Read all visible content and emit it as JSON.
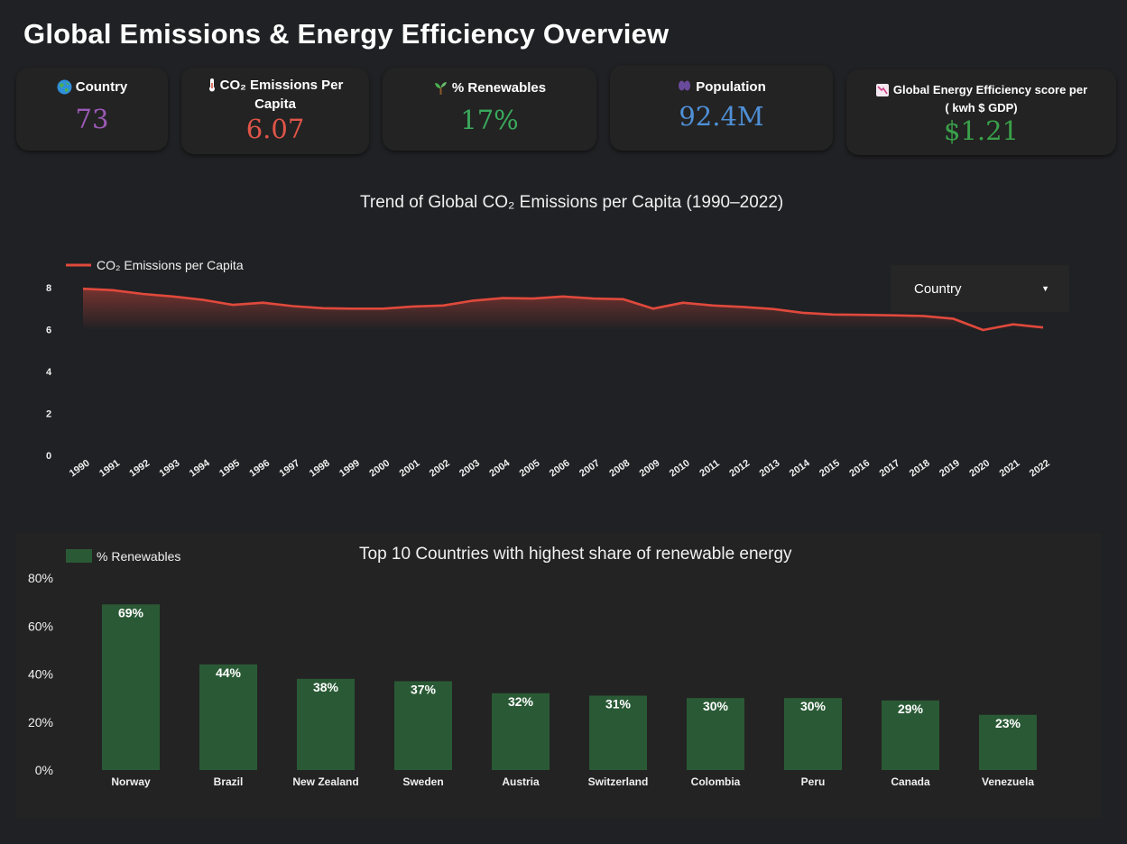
{
  "page": {
    "title": "Global Emissions & Energy Efficiency Overview"
  },
  "kpis": {
    "country": {
      "icon": "globe-icon",
      "label": "Country",
      "value": "73",
      "color": "#9b59b6"
    },
    "co2": {
      "icon": "thermometer-icon",
      "label_line1": "CO₂ Emissions Per",
      "label_line2": "Capita",
      "value": "6.07",
      "color": "#e05548"
    },
    "renewables": {
      "icon": "seedling-icon",
      "label": "% Renewables",
      "value": "17%",
      "color": "#3aaa5c"
    },
    "population": {
      "icon": "people-icon",
      "label": "Population",
      "value": "92.4M",
      "color": "#4f8fd6"
    },
    "efficiency": {
      "icon": "chart-down-icon",
      "label_line1": "Global Energy Efficiency score per",
      "label_line2": "( kwh $ GDP)",
      "value": "$1.21",
      "color": "#3aa04a"
    }
  },
  "line_chart": {
    "title": "Trend of Global CO₂ Emissions per Capita (1990–2022)",
    "dropdown": {
      "label": "Country"
    },
    "line_color": "#e0493c"
  },
  "bar_chart": {
    "title": "Top 10 Countries with highest share of renewable energy",
    "bar_color": "#2a5a35"
  },
  "chart_data": [
    {
      "type": "line",
      "title": "Trend of Global CO₂ Emissions per Capita (1990–2022)",
      "series": [
        {
          "name": "CO₂ Emissions per Capita",
          "values": [
            7.95,
            7.88,
            7.7,
            7.58,
            7.42,
            7.18,
            7.28,
            7.12,
            7.02,
            7.0,
            7.0,
            7.1,
            7.15,
            7.38,
            7.5,
            7.48,
            7.58,
            7.48,
            7.45,
            7.0,
            7.28,
            7.15,
            7.08,
            6.98,
            6.8,
            6.72,
            6.7,
            6.68,
            6.65,
            6.52,
            5.98,
            6.25,
            6.1
          ]
        }
      ],
      "x": [
        "1990",
        "1991",
        "1992",
        "1993",
        "1994",
        "1995",
        "1996",
        "1997",
        "1998",
        "1999",
        "2000",
        "2001",
        "2002",
        "2003",
        "2004",
        "2005",
        "2006",
        "2007",
        "2008",
        "2009",
        "2010",
        "2011",
        "2012",
        "2013",
        "2014",
        "2015",
        "2016",
        "2017",
        "2018",
        "2019",
        "2020",
        "2021",
        "2022"
      ],
      "yticks": [
        "0",
        "2",
        "4",
        "6",
        "8"
      ],
      "ylim": [
        0,
        8
      ],
      "legend": "top-left"
    },
    {
      "type": "bar",
      "title": "Top 10 Countries with highest share of renewable energy",
      "categories": [
        "Norway",
        "Brazil",
        "New Zealand",
        "Sweden",
        "Austria",
        "Switzerland",
        "Colombia",
        "Peru",
        "Canada",
        "Venezuela"
      ],
      "series": [
        {
          "name": "% Renewables",
          "values": [
            69,
            44,
            38,
            37,
            32,
            31,
            30,
            30,
            29,
            23
          ]
        }
      ],
      "data_labels": [
        "69%",
        "44%",
        "38%",
        "37%",
        "32%",
        "31%",
        "30%",
        "30%",
        "29%",
        "23%"
      ],
      "yticks": [
        "0%",
        "20%",
        "40%",
        "60%",
        "80%"
      ],
      "ylim": [
        0,
        80
      ],
      "legend": "top-left"
    }
  ]
}
